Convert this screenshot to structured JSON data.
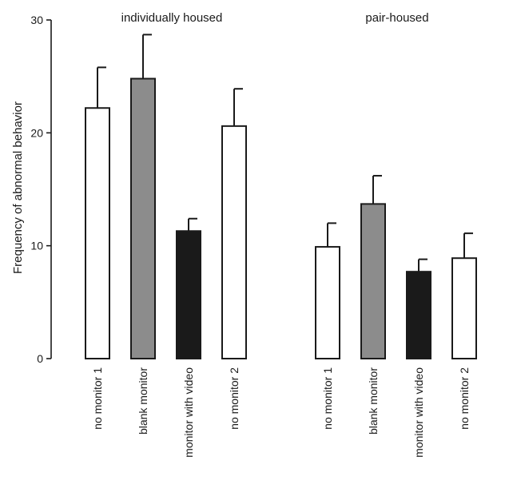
{
  "chart_data": {
    "type": "bar",
    "ylabel": "Frequency of abnormal behavior",
    "ylim": [
      0,
      30
    ],
    "yticks": [
      0,
      10,
      20,
      30
    ],
    "groups": [
      {
        "label": "individually housed",
        "bars": [
          {
            "category": "no monitor 1",
            "value": 22.2,
            "error": 3.6,
            "color": "#ffffff"
          },
          {
            "category": "blank monitor",
            "value": 24.8,
            "error": 3.9,
            "color": "#8c8c8c"
          },
          {
            "category": "monitor with video",
            "value": 11.3,
            "error": 1.1,
            "color": "#1a1a1a"
          },
          {
            "category": "no monitor 2",
            "value": 20.6,
            "error": 3.3,
            "color": "#ffffff"
          }
        ]
      },
      {
        "label": "pair-housed",
        "bars": [
          {
            "category": "no monitor 1",
            "value": 9.9,
            "error": 2.1,
            "color": "#ffffff"
          },
          {
            "category": "blank monitor",
            "value": 13.7,
            "error": 2.5,
            "color": "#8c8c8c"
          },
          {
            "category": "monitor with video",
            "value": 7.7,
            "error": 1.1,
            "color": "#1a1a1a"
          },
          {
            "category": "no monitor 2",
            "value": 8.9,
            "error": 2.2,
            "color": "#ffffff"
          }
        ]
      }
    ]
  }
}
